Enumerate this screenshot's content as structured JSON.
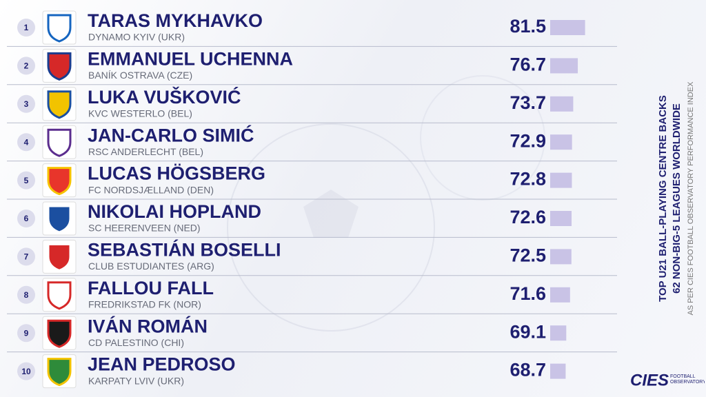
{
  "ranking": {
    "title": "TOP U21 BALL-PLAYING CENTRE BACKS",
    "subtitle": "62 NON-BIG-5 LEAGUES WORLDWIDE",
    "note": "AS PER CIES FOOTBALL OBSERVATORY PERFORMANCE INDEX",
    "brand": "CIES",
    "brand_sub": "FOOTBALL OBSERVATORY",
    "rows": [
      {
        "rank": 1,
        "name": "TARAS MYKHAVKO",
        "club": "DYNAMO KYIV (UKR)",
        "score": 81.5
      },
      {
        "rank": 2,
        "name": "EMMANUEL UCHENNA",
        "club": "BANÍK OSTRAVA (CZE)",
        "score": 76.7
      },
      {
        "rank": 3,
        "name": "LUKA VUŠKOVIĆ",
        "club": "KVC WESTERLO (BEL)",
        "score": 73.7
      },
      {
        "rank": 4,
        "name": "JAN-CARLO SIMIĆ",
        "club": "RSC ANDERLECHT (BEL)",
        "score": 72.9
      },
      {
        "rank": 5,
        "name": "LUCAS HÖGSBERG",
        "club": "FC NORDSJÆLLAND (DEN)",
        "score": 72.8
      },
      {
        "rank": 6,
        "name": "NIKOLAI HOPLAND",
        "club": "SC HEERENVEEN (NED)",
        "score": 72.6
      },
      {
        "rank": 7,
        "name": "SEBASTIÁN BOSELLI",
        "club": "CLUB ESTUDIANTES (ARG)",
        "score": 72.5
      },
      {
        "rank": 8,
        "name": "FALLOU FALL",
        "club": "FREDRIKSTAD FK (NOR)",
        "score": 71.6
      },
      {
        "rank": 9,
        "name": "IVÁN ROMÁN",
        "club": "CD PALESTINO (CHI)",
        "score": 69.1
      },
      {
        "rank": 10,
        "name": "JEAN PEDROSO",
        "club": "KARPATY LVIV (UKR)",
        "score": 68.7
      }
    ]
  }
}
